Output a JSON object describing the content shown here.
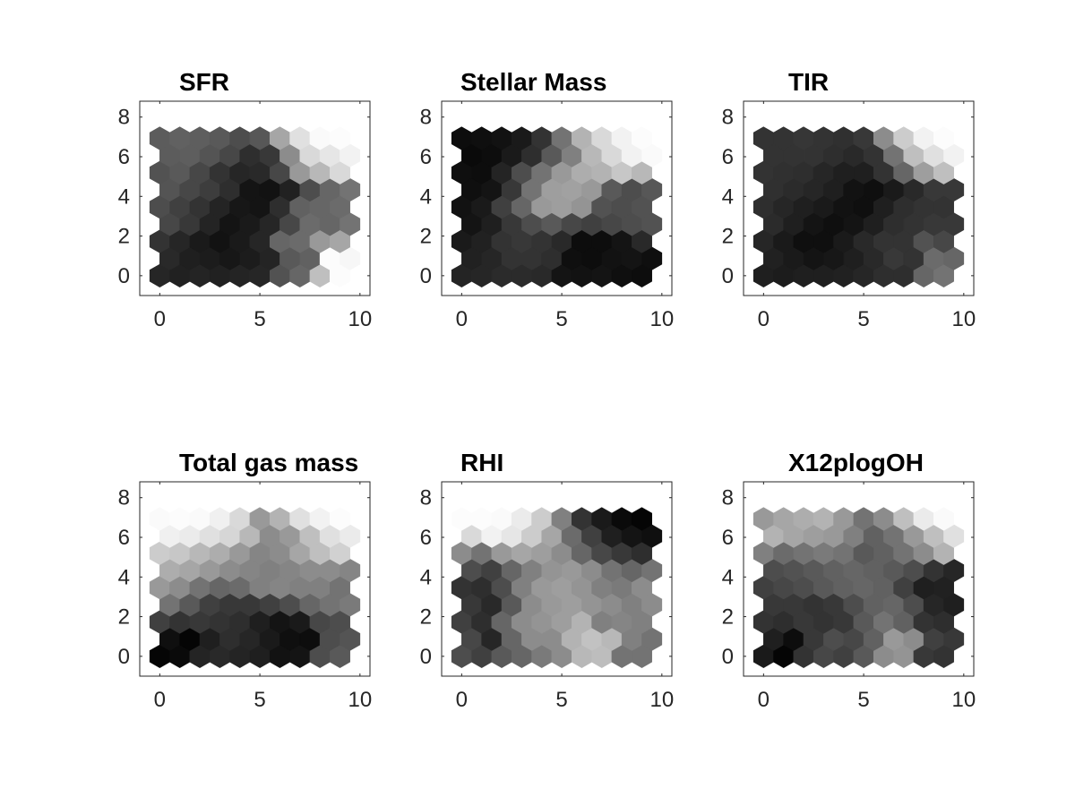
{
  "chart_data": [
    {
      "type": "heatmap",
      "grid": "hexagonal som",
      "title": "SFR",
      "xlim": [
        -1,
        10.5
      ],
      "ylim": [
        -1,
        8.8
      ],
      "xticks": [
        0,
        5,
        10
      ],
      "yticks": [
        0,
        2,
        4,
        6,
        8
      ],
      "x_tick_labels": [
        "0",
        "5",
        "10"
      ],
      "y_tick_labels": [
        "0",
        "2",
        "4",
        "6",
        "8"
      ],
      "colormap": "gray (0 = black, 1 = white)",
      "rows": [
        [
          0.15,
          0.13,
          0.14,
          0.13,
          0.14,
          0.15,
          0.32,
          0.4,
          0.75,
          0.99
        ],
        [
          0.16,
          0.12,
          0.11,
          0.09,
          0.11,
          0.14,
          0.35,
          0.38,
          0.99,
          0.97
        ],
        [
          0.2,
          0.15,
          0.1,
          0.07,
          0.1,
          0.15,
          0.4,
          0.42,
          0.6,
          0.65
        ],
        [
          0.28,
          0.22,
          0.14,
          0.08,
          0.1,
          0.15,
          0.28,
          0.42,
          0.4,
          0.45
        ],
        [
          0.3,
          0.25,
          0.2,
          0.14,
          0.09,
          0.08,
          0.18,
          0.38,
          0.4,
          0.42
        ],
        [
          0.33,
          0.28,
          0.24,
          0.18,
          0.08,
          0.07,
          0.13,
          0.3,
          0.4,
          0.45
        ],
        [
          0.32,
          0.35,
          0.28,
          0.2,
          0.15,
          0.16,
          0.28,
          0.6,
          0.72,
          0.85
        ],
        [
          0.36,
          0.37,
          0.33,
          0.28,
          0.18,
          0.22,
          0.55,
          0.85,
          0.9,
          0.95
        ],
        [
          0.36,
          0.38,
          0.37,
          0.35,
          0.3,
          0.34,
          0.65,
          0.88,
          0.98,
          0.99
        ]
      ]
    },
    {
      "type": "heatmap",
      "grid": "hexagonal som",
      "title": "Stellar Mass",
      "xlim": [
        -1,
        10.5
      ],
      "ylim": [
        -1,
        8.8
      ],
      "xticks": [
        0,
        5,
        10
      ],
      "yticks": [
        0,
        2,
        4,
        6,
        8
      ],
      "x_tick_labels": [
        "0",
        "5",
        "10"
      ],
      "y_tick_labels": [
        "0",
        "2",
        "4",
        "6",
        "8"
      ],
      "colormap": "gray (0 = black, 1 = white)",
      "rows": [
        [
          0.14,
          0.15,
          0.17,
          0.17,
          0.16,
          0.08,
          0.07,
          0.08,
          0.06,
          0.05
        ],
        [
          0.13,
          0.15,
          0.2,
          0.2,
          0.18,
          0.06,
          0.05,
          0.07,
          0.08,
          0.06
        ],
        [
          0.1,
          0.13,
          0.2,
          0.22,
          0.2,
          0.16,
          0.05,
          0.05,
          0.08,
          0.16
        ],
        [
          0.08,
          0.12,
          0.22,
          0.3,
          0.35,
          0.28,
          0.25,
          0.28,
          0.3,
          0.32
        ],
        [
          0.07,
          0.1,
          0.25,
          0.4,
          0.6,
          0.62,
          0.58,
          0.32,
          0.3,
          0.32
        ],
        [
          0.06,
          0.08,
          0.22,
          0.45,
          0.62,
          0.63,
          0.6,
          0.35,
          0.3,
          0.34
        ],
        [
          0.06,
          0.05,
          0.14,
          0.3,
          0.45,
          0.6,
          0.68,
          0.7,
          0.78,
          0.72
        ],
        [
          0.04,
          0.05,
          0.1,
          0.18,
          0.35,
          0.5,
          0.72,
          0.85,
          0.95,
          0.98
        ],
        [
          0.05,
          0.06,
          0.07,
          0.1,
          0.2,
          0.45,
          0.7,
          0.85,
          0.95,
          0.99
        ]
      ]
    },
    {
      "type": "heatmap",
      "grid": "hexagonal som",
      "title": "TIR",
      "xlim": [
        -1,
        10.5
      ],
      "ylim": [
        -1,
        8.8
      ],
      "xticks": [
        0,
        5,
        10
      ],
      "yticks": [
        0,
        2,
        4,
        6,
        8
      ],
      "x_tick_labels": [
        "0",
        "5",
        "10"
      ],
      "y_tick_labels": [
        "0",
        "2",
        "4",
        "6",
        "8"
      ],
      "colormap": "gray (0 = black, 1 = white)",
      "rows": [
        [
          0.12,
          0.11,
          0.12,
          0.12,
          0.13,
          0.15,
          0.18,
          0.18,
          0.4,
          0.45
        ],
        [
          0.13,
          0.1,
          0.08,
          0.09,
          0.12,
          0.16,
          0.22,
          0.2,
          0.42,
          0.4
        ],
        [
          0.15,
          0.1,
          0.06,
          0.06,
          0.1,
          0.16,
          0.2,
          0.2,
          0.32,
          0.28
        ],
        [
          0.17,
          0.12,
          0.08,
          0.06,
          0.08,
          0.12,
          0.18,
          0.2,
          0.22,
          0.22
        ],
        [
          0.18,
          0.15,
          0.12,
          0.1,
          0.07,
          0.06,
          0.12,
          0.18,
          0.2,
          0.2
        ],
        [
          0.19,
          0.17,
          0.15,
          0.12,
          0.07,
          0.06,
          0.1,
          0.16,
          0.22,
          0.22
        ],
        [
          0.2,
          0.19,
          0.18,
          0.15,
          0.12,
          0.12,
          0.2,
          0.4,
          0.62,
          0.75
        ],
        [
          0.2,
          0.2,
          0.2,
          0.18,
          0.16,
          0.2,
          0.45,
          0.75,
          0.88,
          0.95
        ],
        [
          0.2,
          0.2,
          0.21,
          0.2,
          0.19,
          0.22,
          0.55,
          0.8,
          0.95,
          0.99
        ]
      ]
    },
    {
      "type": "heatmap",
      "grid": "hexagonal som",
      "title": "Total gas mass",
      "xlim": [
        -1,
        10.5
      ],
      "ylim": [
        -1,
        8.8
      ],
      "xticks": [
        0,
        5,
        10
      ],
      "yticks": [
        0,
        2,
        4,
        6,
        8
      ],
      "x_tick_labels": [
        "0",
        "5",
        "10"
      ],
      "y_tick_labels": [
        "0",
        "2",
        "4",
        "6",
        "8"
      ],
      "colormap": "gray (0 = black, 1 = white)",
      "rows": [
        [
          0.02,
          0.04,
          0.14,
          0.16,
          0.14,
          0.12,
          0.07,
          0.08,
          0.3,
          0.35
        ],
        [
          0.06,
          0.02,
          0.12,
          0.18,
          0.15,
          0.1,
          0.06,
          0.05,
          0.3,
          0.33
        ],
        [
          0.25,
          0.2,
          0.22,
          0.2,
          0.18,
          0.12,
          0.08,
          0.1,
          0.28,
          0.3
        ],
        [
          0.45,
          0.35,
          0.25,
          0.22,
          0.22,
          0.25,
          0.3,
          0.4,
          0.45,
          0.48
        ],
        [
          0.6,
          0.55,
          0.45,
          0.4,
          0.42,
          0.5,
          0.52,
          0.5,
          0.5,
          0.45
        ],
        [
          0.68,
          0.65,
          0.6,
          0.55,
          0.52,
          0.5,
          0.52,
          0.55,
          0.55,
          0.52
        ],
        [
          0.8,
          0.78,
          0.72,
          0.68,
          0.6,
          0.52,
          0.55,
          0.65,
          0.75,
          0.82
        ],
        [
          0.94,
          0.92,
          0.88,
          0.84,
          0.72,
          0.55,
          0.6,
          0.75,
          0.88,
          0.92
        ],
        [
          0.98,
          0.99,
          0.98,
          0.94,
          0.85,
          0.6,
          0.7,
          0.88,
          0.95,
          0.99
        ]
      ]
    },
    {
      "type": "heatmap",
      "grid": "hexagonal som",
      "title": "RHI",
      "xlim": [
        -1,
        10.5
      ],
      "ylim": [
        -1,
        8.8
      ],
      "xticks": [
        0,
        5,
        10
      ],
      "yticks": [
        0,
        2,
        4,
        6,
        8
      ],
      "x_tick_labels": [
        "0",
        "5",
        "10"
      ],
      "y_tick_labels": [
        "0",
        "2",
        "4",
        "6",
        "8"
      ],
      "colormap": "gray (0 = black, 1 = white)",
      "rows": [
        [
          0.3,
          0.25,
          0.35,
          0.4,
          0.48,
          0.55,
          0.72,
          0.74,
          0.45,
          0.45
        ],
        [
          0.28,
          0.15,
          0.4,
          0.55,
          0.55,
          0.7,
          0.76,
          0.72,
          0.5,
          0.45
        ],
        [
          0.25,
          0.18,
          0.4,
          0.55,
          0.58,
          0.62,
          0.7,
          0.5,
          0.52,
          0.5
        ],
        [
          0.22,
          0.16,
          0.35,
          0.55,
          0.6,
          0.62,
          0.58,
          0.55,
          0.5,
          0.55
        ],
        [
          0.2,
          0.18,
          0.3,
          0.5,
          0.6,
          0.62,
          0.58,
          0.5,
          0.48,
          0.55
        ],
        [
          0.3,
          0.25,
          0.4,
          0.5,
          0.58,
          0.6,
          0.55,
          0.45,
          0.4,
          0.45
        ],
        [
          0.55,
          0.45,
          0.6,
          0.65,
          0.62,
          0.55,
          0.4,
          0.28,
          0.22,
          0.18
        ],
        [
          0.85,
          0.95,
          0.9,
          0.8,
          0.65,
          0.42,
          0.25,
          0.12,
          0.08,
          0.06
        ],
        [
          0.99,
          0.99,
          0.98,
          0.92,
          0.8,
          0.5,
          0.2,
          0.1,
          0.04,
          0.02
        ]
      ]
    },
    {
      "type": "heatmap",
      "grid": "hexagonal som",
      "title": "X12plogOH",
      "xlim": [
        -1,
        10.5
      ],
      "ylim": [
        -1,
        8.8
      ],
      "xticks": [
        0,
        5,
        10
      ],
      "yticks": [
        0,
        2,
        4,
        6,
        8
      ],
      "x_tick_labels": [
        "0",
        "5",
        "10"
      ],
      "y_tick_labels": [
        "0",
        "2",
        "4",
        "6",
        "8"
      ],
      "colormap": "gray (0 = black, 1 = white)",
      "rows": [
        [
          0.1,
          0.02,
          0.2,
          0.28,
          0.25,
          0.35,
          0.55,
          0.58,
          0.22,
          0.2
        ],
        [
          0.12,
          0.05,
          0.22,
          0.3,
          0.28,
          0.38,
          0.6,
          0.55,
          0.25,
          0.22
        ],
        [
          0.2,
          0.18,
          0.22,
          0.2,
          0.22,
          0.35,
          0.45,
          0.38,
          0.2,
          0.18
        ],
        [
          0.22,
          0.22,
          0.2,
          0.22,
          0.3,
          0.38,
          0.4,
          0.3,
          0.15,
          0.12
        ],
        [
          0.25,
          0.28,
          0.3,
          0.35,
          0.38,
          0.4,
          0.38,
          0.25,
          0.12,
          0.13
        ],
        [
          0.3,
          0.32,
          0.35,
          0.38,
          0.4,
          0.38,
          0.35,
          0.3,
          0.2,
          0.15
        ],
        [
          0.5,
          0.42,
          0.45,
          0.48,
          0.45,
          0.35,
          0.38,
          0.45,
          0.55,
          0.7
        ],
        [
          0.7,
          0.65,
          0.62,
          0.6,
          0.5,
          0.38,
          0.45,
          0.6,
          0.75,
          0.88
        ],
        [
          0.6,
          0.65,
          0.68,
          0.7,
          0.6,
          0.45,
          0.55,
          0.75,
          0.92,
          0.98
        ]
      ]
    }
  ]
}
